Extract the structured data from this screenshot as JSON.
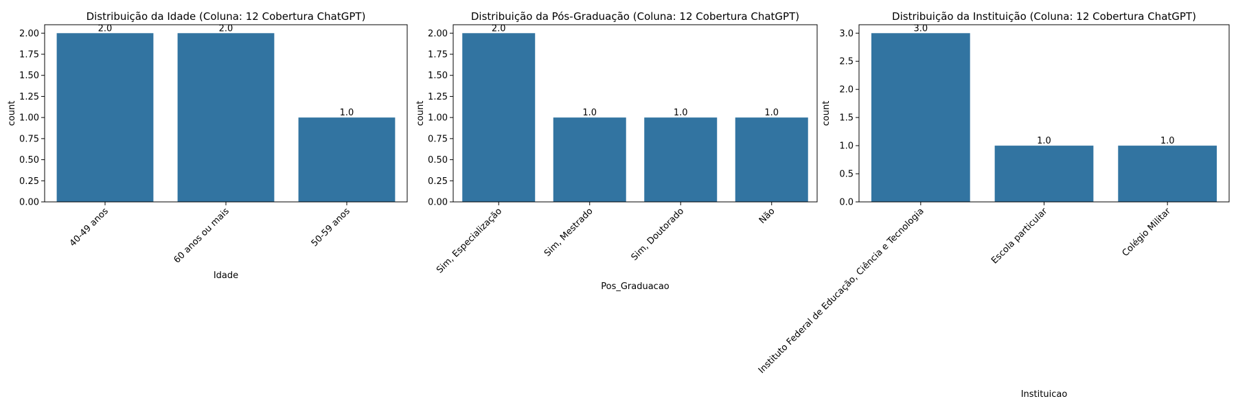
{
  "chart_data": [
    {
      "type": "bar",
      "title": "Distribuição da Idade (Coluna: 12 Cobertura ChatGPT)",
      "xlabel": "Idade",
      "ylabel": "count",
      "categories": [
        "40-49 anos",
        "60 anos ou mais",
        "50-59 anos"
      ],
      "values": [
        2.0,
        2.0,
        1.0
      ],
      "data_labels": [
        "2.0",
        "2.0",
        "1.0"
      ],
      "ylim": [
        0,
        2.1
      ],
      "yticks": [
        "0.00",
        "0.25",
        "0.50",
        "0.75",
        "1.00",
        "1.25",
        "1.50",
        "1.75",
        "2.00"
      ],
      "bar_color": "#3274a1",
      "grid": false,
      "xtick_rotation": 45
    },
    {
      "type": "bar",
      "title": "Distribuição da Pós-Graduação (Coluna: 12 Cobertura ChatGPT)",
      "xlabel": "Pos_Graduacao",
      "ylabel": "count",
      "categories": [
        "Sim, Especialização",
        "Sim, Mestrado",
        "Sim, Doutorado",
        "Não"
      ],
      "values": [
        2.0,
        1.0,
        1.0,
        1.0
      ],
      "data_labels": [
        "2.0",
        "1.0",
        "1.0",
        "1.0"
      ],
      "ylim": [
        0,
        2.1
      ],
      "yticks": [
        "0.00",
        "0.25",
        "0.50",
        "0.75",
        "1.00",
        "1.25",
        "1.50",
        "1.75",
        "2.00"
      ],
      "bar_color": "#3274a1",
      "grid": false,
      "xtick_rotation": 45
    },
    {
      "type": "bar",
      "title": "Distribuição da Instituição (Coluna: 12 Cobertura ChatGPT)",
      "xlabel": "Instituicao",
      "ylabel": "count",
      "categories": [
        "Instituto Federal de Educação, Ciência e Tecnologia",
        "Escola particular",
        "Colégio Militar"
      ],
      "values": [
        3.0,
        1.0,
        1.0
      ],
      "data_labels": [
        "3.0",
        "1.0",
        "1.0"
      ],
      "ylim": [
        0,
        3.15
      ],
      "yticks": [
        "0.0",
        "0.5",
        "1.0",
        "1.5",
        "2.0",
        "2.5",
        "3.0"
      ],
      "bar_color": "#3274a1",
      "grid": false,
      "xtick_rotation": 45
    }
  ]
}
